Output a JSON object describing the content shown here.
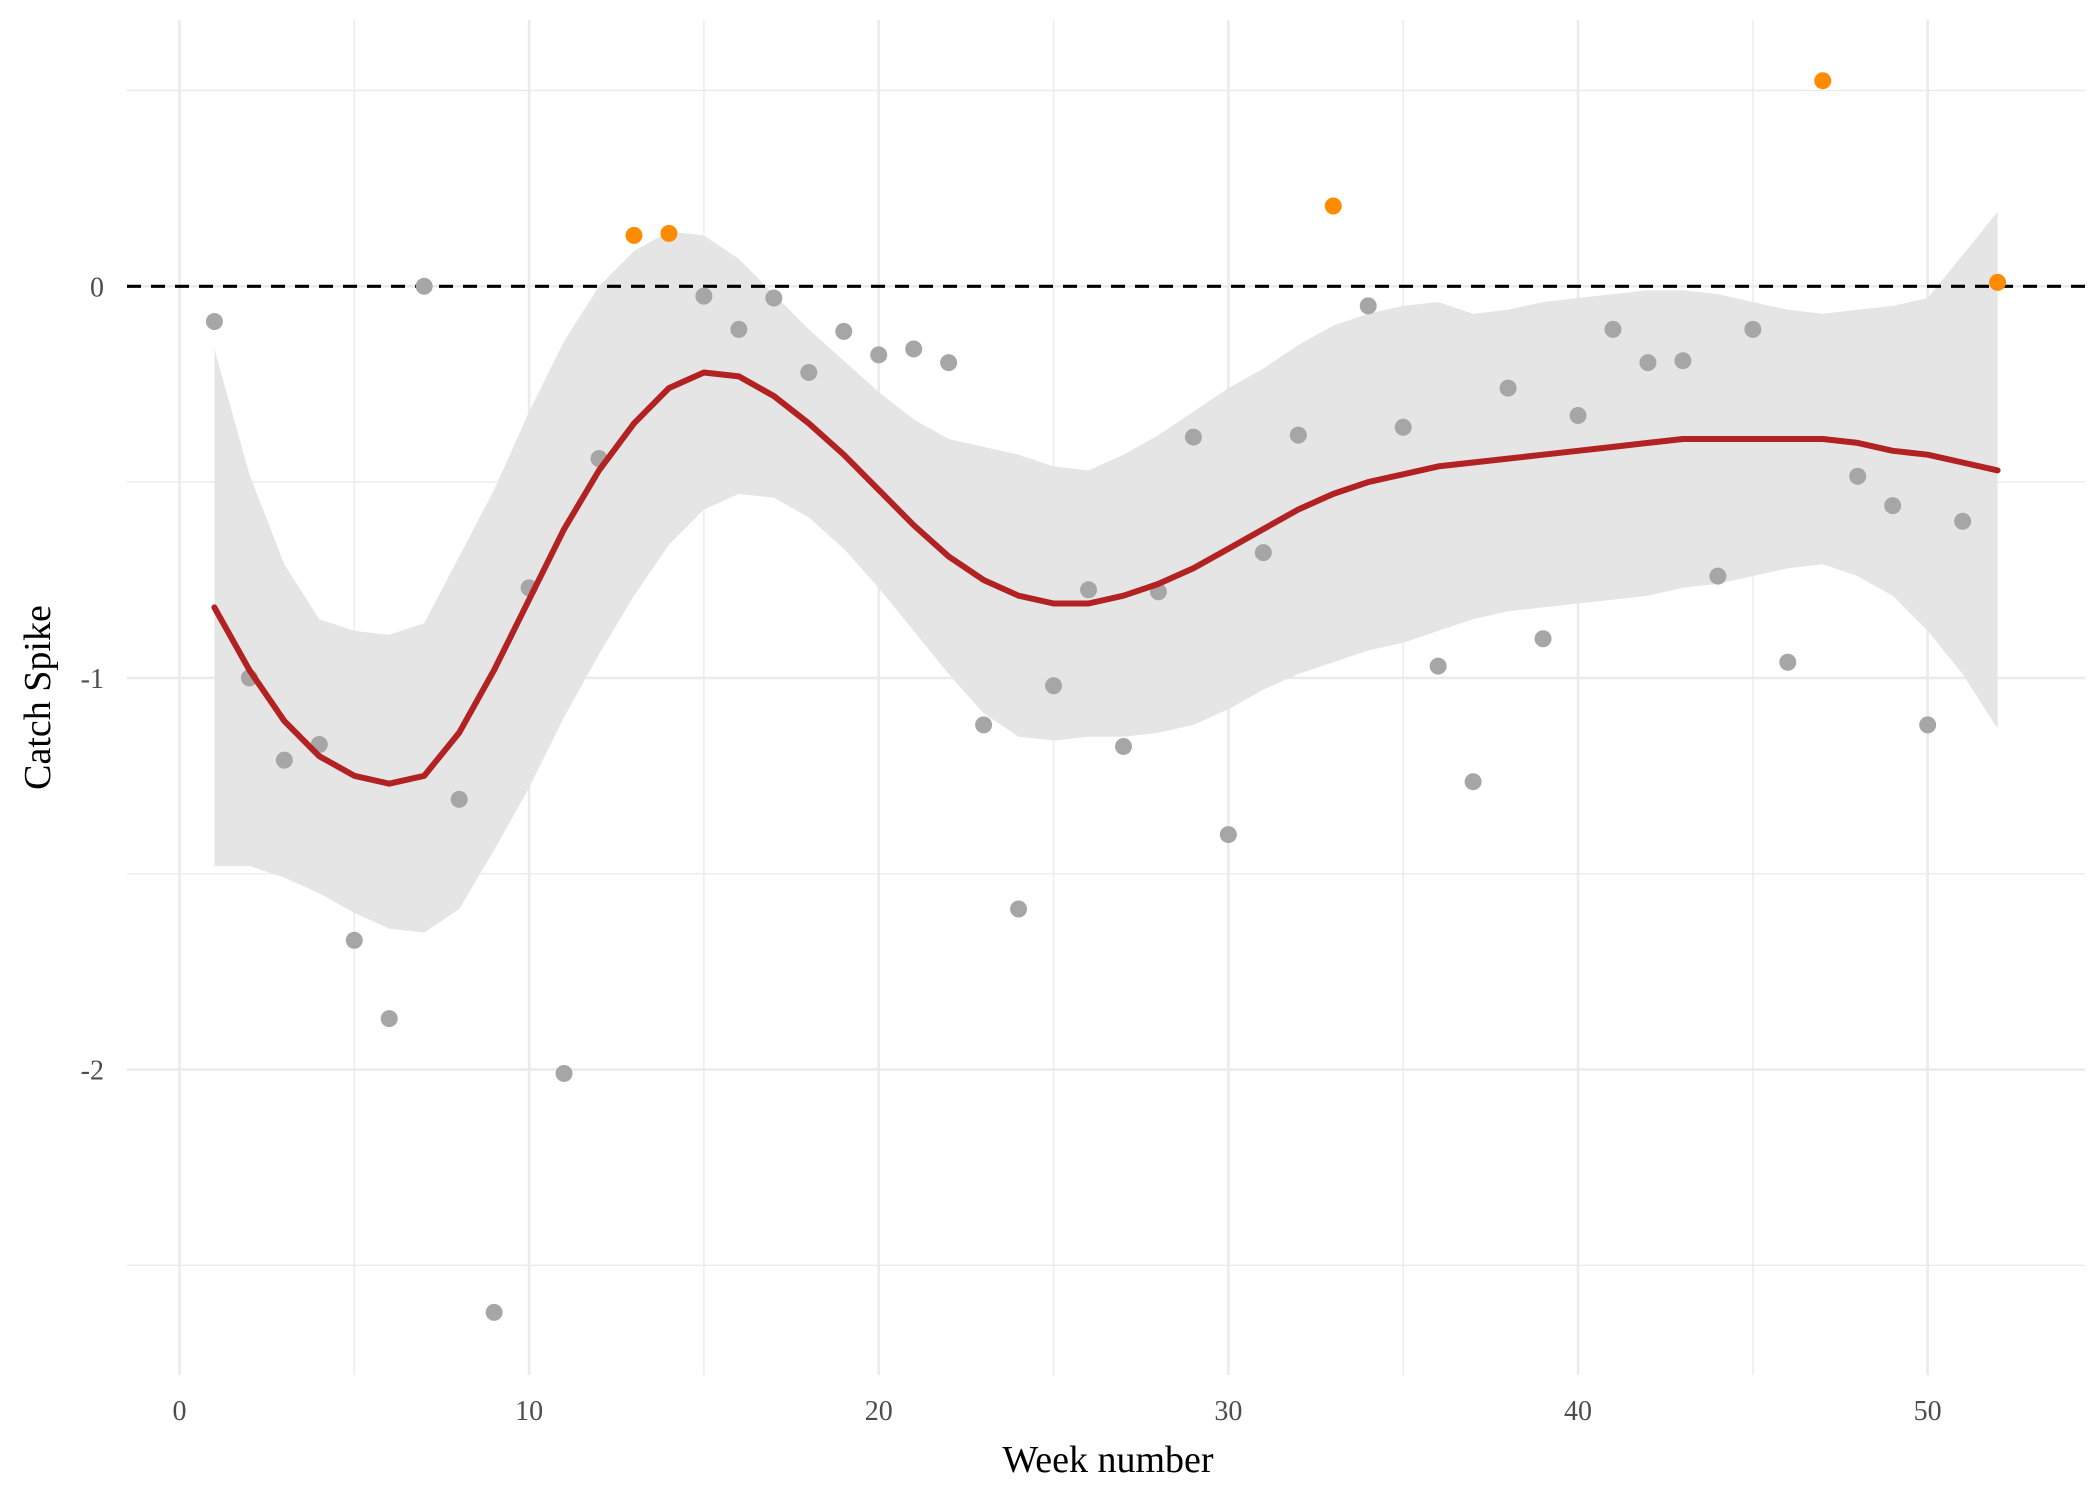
{
  "chart_data": {
    "type": "scatter",
    "title": "",
    "xlabel": "Week number",
    "ylabel": "Catch Spike",
    "xlim": [
      -1.5,
      54.5
    ],
    "ylim": [
      -2.78,
      0.68
    ],
    "x_ticks": [
      0,
      10,
      20,
      30,
      40,
      50
    ],
    "x_tick_labels": [
      "0",
      "10",
      "20",
      "30",
      "40",
      "50"
    ],
    "y_ticks": [
      0,
      -1,
      -2
    ],
    "y_tick_labels": [
      "0",
      "-1",
      "-2"
    ],
    "grid": true,
    "legend": "none",
    "reference_line": {
      "y": 0,
      "style": "dashed",
      "color": "#000000"
    },
    "colors": {
      "normal_point": "#a6a6a6",
      "spike_point": "#ff8c00",
      "smooth_line": "#b22222",
      "confidence_band": "#e5e5e5",
      "grid": "#ebebeb"
    },
    "series": [
      {
        "kind": "points",
        "x": [
          1,
          2,
          3,
          4,
          5,
          6,
          7,
          8,
          9,
          10,
          11,
          12,
          13,
          14,
          15,
          16,
          17,
          18,
          19,
          20,
          21,
          22,
          23,
          24,
          25,
          26,
          27,
          28,
          29,
          30,
          31,
          32,
          33,
          34,
          35,
          36,
          37,
          38,
          39,
          40,
          41,
          42,
          43,
          44,
          45,
          46,
          47,
          48,
          49,
          50,
          51,
          52
        ],
        "y": [
          -0.09,
          -1.0,
          -1.21,
          -1.17,
          -1.67,
          -1.87,
          0.0,
          -1.31,
          -2.62,
          -0.77,
          -2.01,
          -0.44,
          0.13,
          0.135,
          -0.025,
          -0.11,
          -0.03,
          -0.22,
          -0.115,
          -0.175,
          -0.16,
          -0.195,
          -1.12,
          -1.59,
          -1.02,
          -0.775,
          -1.175,
          -0.78,
          -0.385,
          -1.4,
          -0.68,
          -0.38,
          0.205,
          -0.05,
          -0.36,
          -0.97,
          -1.265,
          -0.26,
          -0.9,
          -0.33,
          -0.11,
          -0.195,
          -0.19,
          -0.74,
          -0.11,
          -0.96,
          0.525,
          -0.485,
          -0.56,
          -1.12,
          -0.6,
          0.01
        ],
        "flag": [
          0,
          0,
          0,
          0,
          0,
          0,
          0,
          0,
          0,
          0,
          0,
          0,
          1,
          1,
          0,
          0,
          0,
          0,
          0,
          0,
          0,
          0,
          0,
          0,
          0,
          0,
          0,
          0,
          0,
          0,
          0,
          0,
          1,
          0,
          0,
          0,
          0,
          0,
          0,
          0,
          0,
          0,
          0,
          0,
          0,
          0,
          1,
          0,
          0,
          0,
          0,
          1
        ]
      },
      {
        "kind": "smooth",
        "x": [
          1,
          2,
          3,
          4,
          5,
          6,
          7,
          8,
          9,
          10,
          11,
          12,
          13,
          14,
          15,
          16,
          17,
          18,
          19,
          20,
          21,
          22,
          23,
          24,
          25,
          26,
          27,
          28,
          29,
          30,
          31,
          32,
          33,
          34,
          35,
          36,
          37,
          38,
          39,
          40,
          41,
          42,
          43,
          44,
          45,
          46,
          47,
          48,
          49,
          50,
          51,
          52
        ],
        "y": [
          -0.82,
          -0.98,
          -1.11,
          -1.2,
          -1.25,
          -1.27,
          -1.25,
          -1.14,
          -0.98,
          -0.8,
          -0.62,
          -0.47,
          -0.35,
          -0.26,
          -0.22,
          -0.23,
          -0.28,
          -0.35,
          -0.43,
          -0.52,
          -0.61,
          -0.69,
          -0.75,
          -0.79,
          -0.81,
          -0.81,
          -0.79,
          -0.76,
          -0.72,
          -0.67,
          -0.62,
          -0.57,
          -0.53,
          -0.5,
          -0.48,
          -0.46,
          -0.45,
          -0.44,
          -0.43,
          -0.42,
          -0.41,
          -0.4,
          -0.39,
          -0.39,
          -0.39,
          -0.39,
          -0.39,
          -0.4,
          -0.42,
          -0.43,
          -0.45,
          -0.47
        ],
        "lower": [
          -1.48,
          -1.48,
          -1.51,
          -1.55,
          -1.6,
          -1.64,
          -1.65,
          -1.59,
          -1.44,
          -1.28,
          -1.1,
          -0.94,
          -0.79,
          -0.66,
          -0.57,
          -0.53,
          -0.54,
          -0.59,
          -0.67,
          -0.77,
          -0.88,
          -0.99,
          -1.09,
          -1.15,
          -1.16,
          -1.15,
          -1.15,
          -1.14,
          -1.12,
          -1.08,
          -1.03,
          -0.99,
          -0.96,
          -0.93,
          -0.91,
          -0.88,
          -0.85,
          -0.83,
          -0.82,
          -0.81,
          -0.8,
          -0.79,
          -0.77,
          -0.76,
          -0.74,
          -0.72,
          -0.71,
          -0.74,
          -0.79,
          -0.88,
          -0.99,
          -1.13
        ],
        "upper": [
          -0.16,
          -0.48,
          -0.71,
          -0.85,
          -0.88,
          -0.89,
          -0.86,
          -0.69,
          -0.52,
          -0.32,
          -0.14,
          0.0,
          0.09,
          0.14,
          0.13,
          0.07,
          -0.02,
          -0.11,
          -0.19,
          -0.27,
          -0.34,
          -0.39,
          -0.41,
          -0.43,
          -0.46,
          -0.47,
          -0.43,
          -0.38,
          -0.32,
          -0.26,
          -0.21,
          -0.15,
          -0.1,
          -0.07,
          -0.05,
          -0.04,
          -0.07,
          -0.06,
          -0.04,
          -0.03,
          -0.02,
          -0.01,
          -0.01,
          -0.02,
          -0.04,
          -0.06,
          -0.07,
          -0.06,
          -0.05,
          -0.03,
          0.08,
          0.19
        ]
      }
    ]
  }
}
